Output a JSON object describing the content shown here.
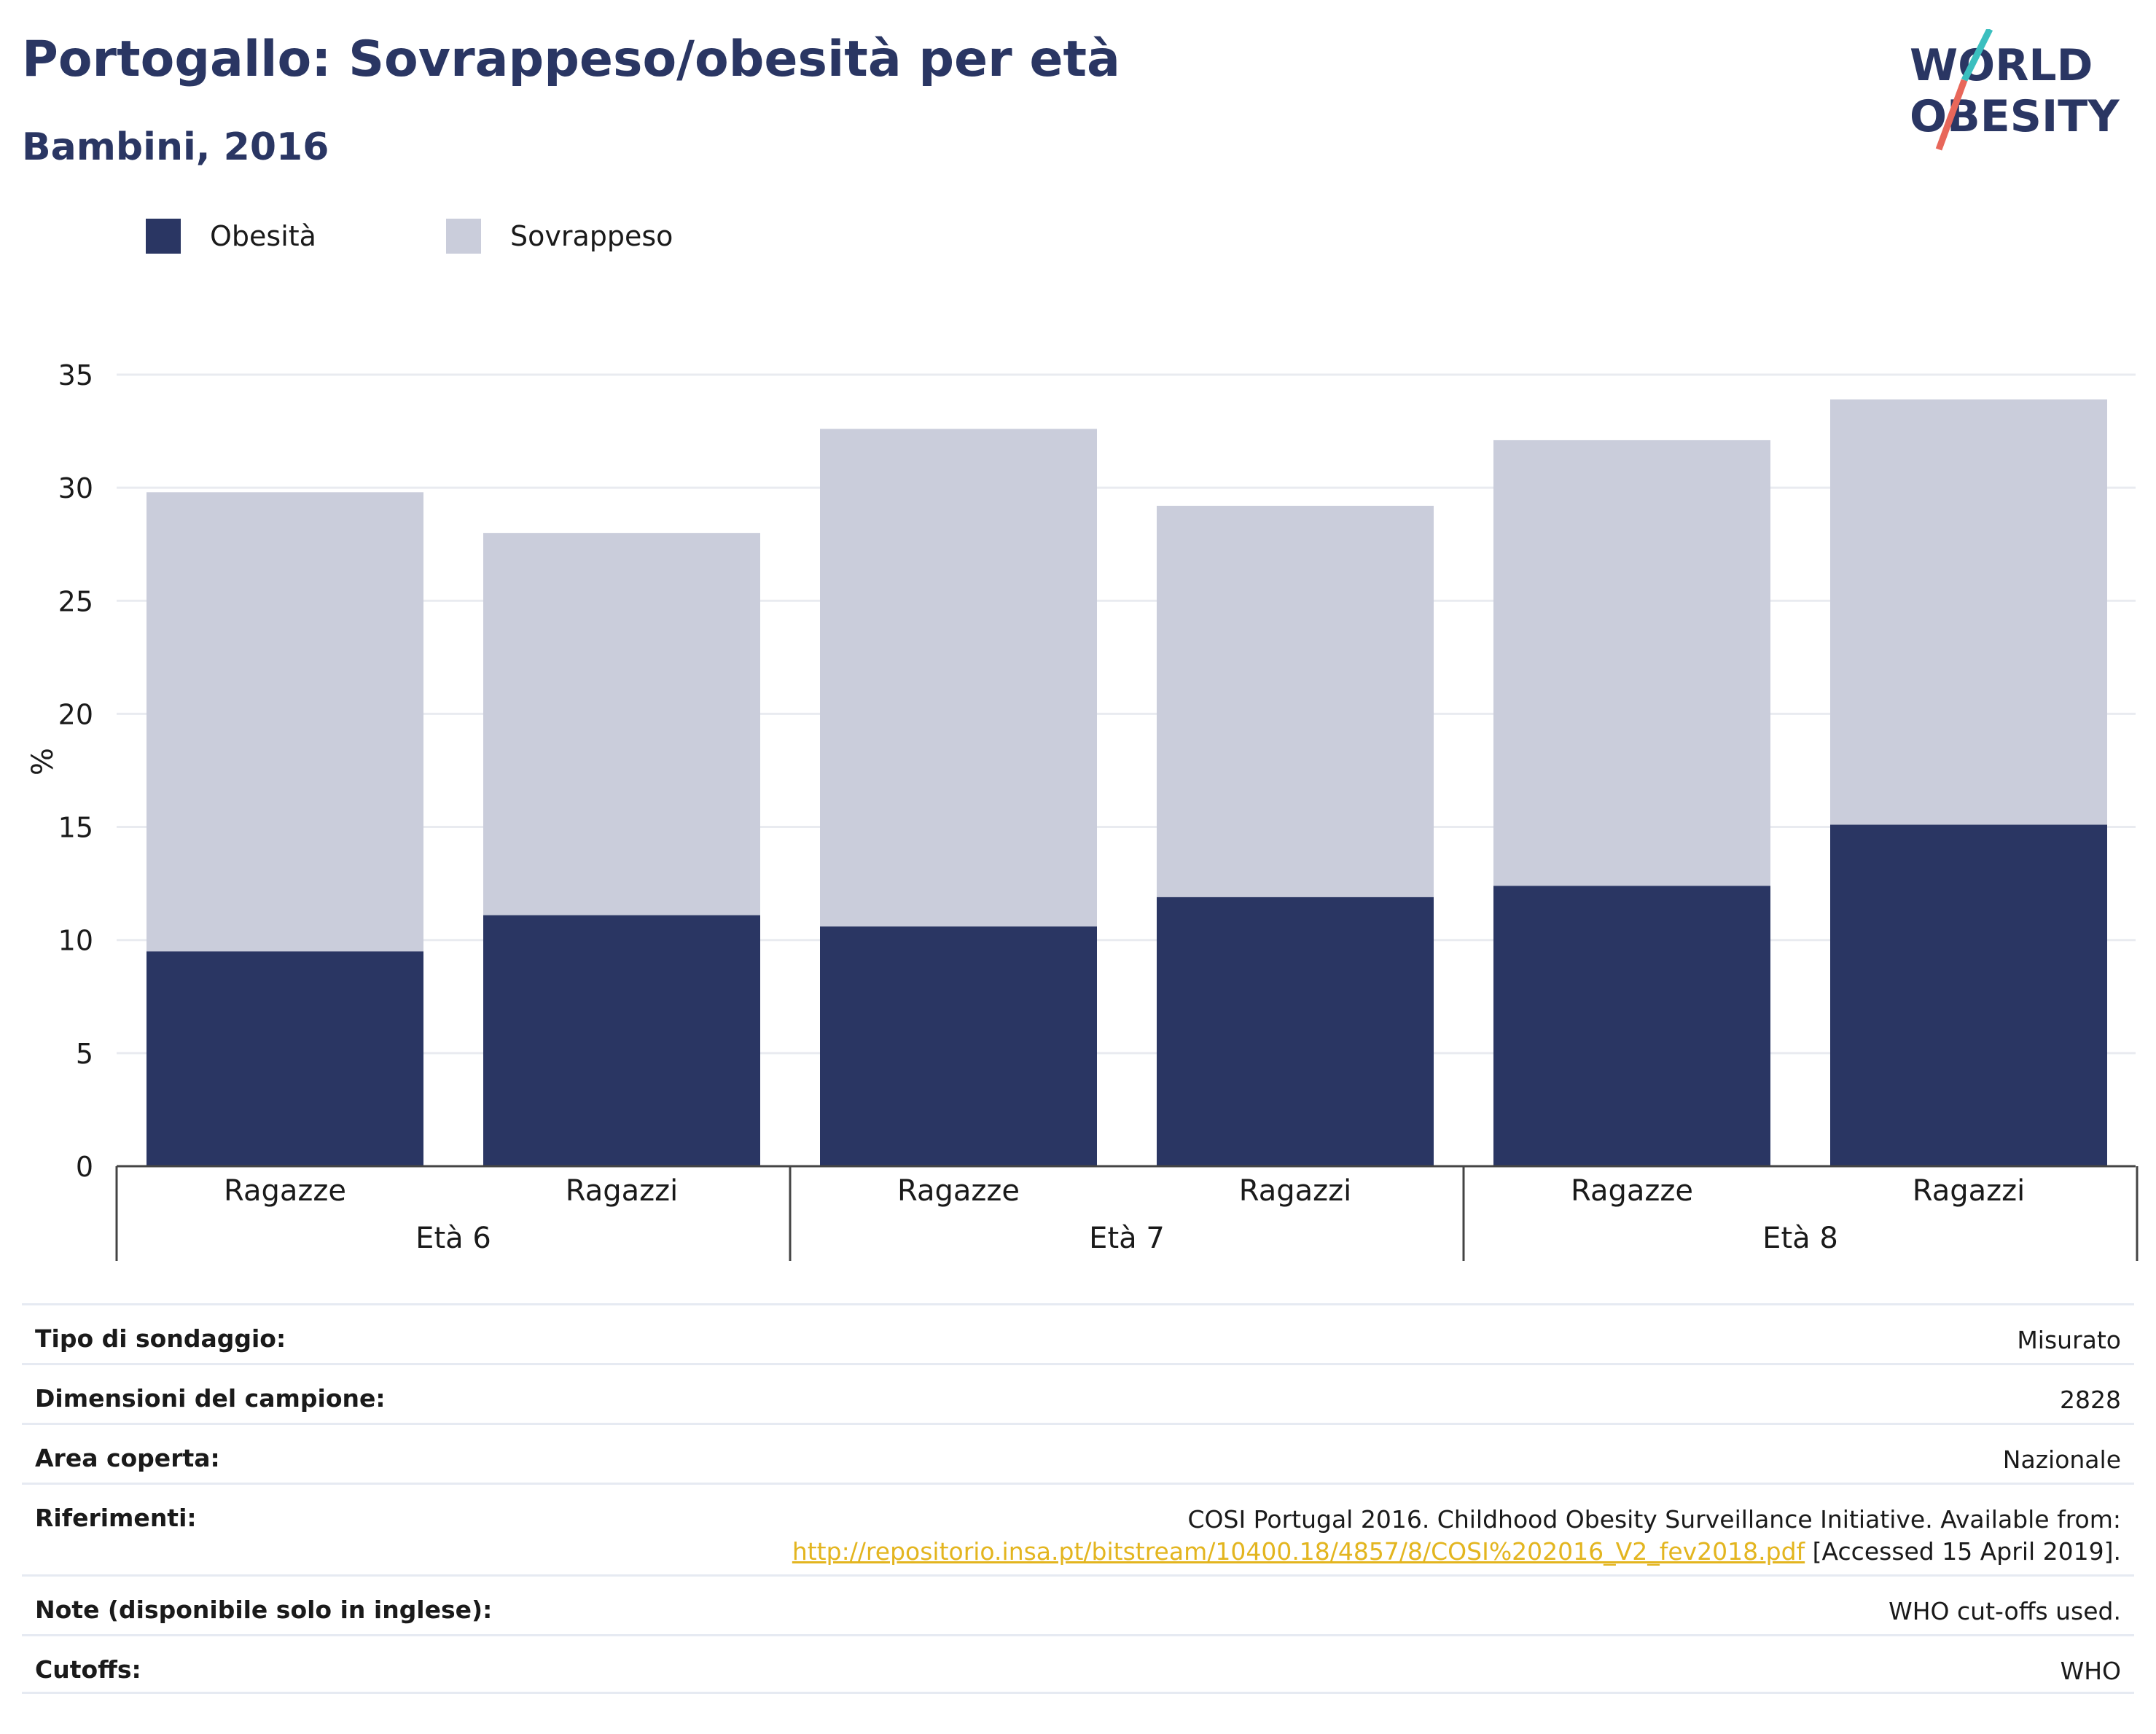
{
  "header": {
    "title": "Portogallo: Sovrappeso/obesità per età",
    "subtitle": "Bambini, 2016"
  },
  "logo": {
    "line1": "WORLD",
    "line2": "OBESITY"
  },
  "legend": {
    "items": [
      {
        "label": "Obesità",
        "color": "#2a3663"
      },
      {
        "label": "Sovrappeso",
        "color": "#cacddb"
      }
    ]
  },
  "chart_data": {
    "type": "bar",
    "stacked": true,
    "ylabel": "%",
    "ylim": [
      0,
      35
    ],
    "yticks": [
      0,
      5,
      10,
      15,
      20,
      25,
      30,
      35
    ],
    "grid": true,
    "legend_position": "top-left",
    "groups": [
      "Età 6",
      "Età 7",
      "Età 8"
    ],
    "categories": [
      "Ragazze",
      "Ragazzi",
      "Ragazze",
      "Ragazzi",
      "Ragazze",
      "Ragazzi"
    ],
    "category_group": [
      0,
      0,
      1,
      1,
      2,
      2
    ],
    "series": [
      {
        "name": "Obesità",
        "color": "#2a3663",
        "values": [
          9.5,
          11.1,
          10.6,
          11.9,
          12.4,
          15.1
        ]
      },
      {
        "name": "Sovrappeso",
        "color": "#cacddb",
        "values": [
          20.3,
          16.9,
          22.0,
          17.3,
          19.7,
          18.8
        ]
      }
    ]
  },
  "info": {
    "survey_type": {
      "label": "Tipo di sondaggio:",
      "value": "Misurato"
    },
    "sample_size": {
      "label": "Dimensioni del campione:",
      "value": "2828"
    },
    "area": {
      "label": "Area coperta:",
      "value": "Nazionale"
    },
    "references": {
      "label": "Riferimenti:",
      "line1": "COSI Portugal 2016. Childhood Obesity Surveillance Initiative. Available from:",
      "link": "http://repositorio.insa.pt/bitstream/10400.18/4857/8/COSI%202016_V2_fev2018.pdf",
      "suffix": " [Accessed 15 April 2019]."
    },
    "notes": {
      "label": "Note (disponibile solo in inglese):",
      "value": "WHO cut-offs used."
    },
    "cutoffs": {
      "label": "Cutoffs:",
      "value": "WHO"
    }
  }
}
